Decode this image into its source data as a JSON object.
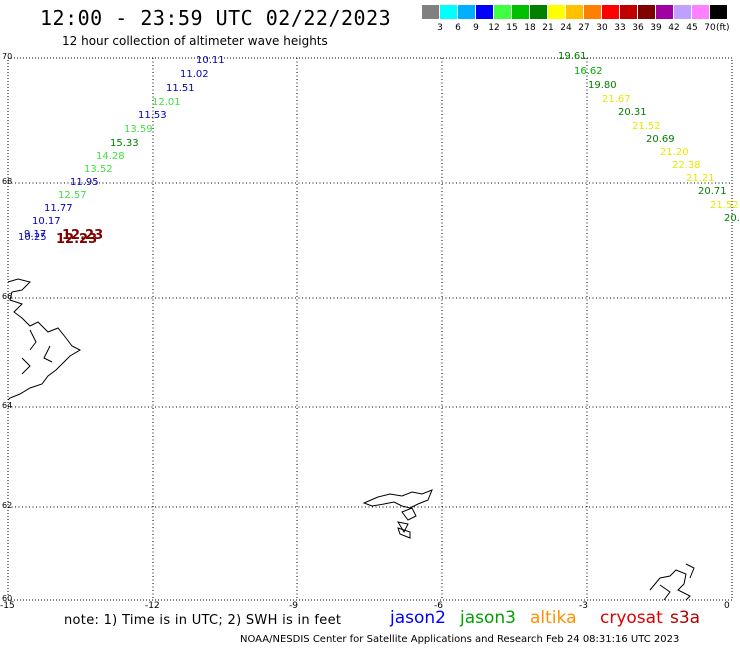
{
  "title": "12:00 - 23:59 UTC 02/22/2023",
  "subtitle": "12 hour collection of altimeter wave heights",
  "legend": {
    "colors": [
      "#808080",
      "#00ffff",
      "#00b0ff",
      "#0000ff",
      "#40ff40",
      "#00c000",
      "#008000",
      "#ffff00",
      "#ffc000",
      "#ff8000",
      "#ff0000",
      "#c00000",
      "#800000",
      "#a000a0",
      "#c0a0ff",
      "#ff80ff",
      "#000000"
    ],
    "labels": [
      "3",
      "6",
      "9",
      "12",
      "15",
      "18",
      "21",
      "24",
      "27",
      "30",
      "33",
      "36",
      "39",
      "42",
      "45",
      "70"
    ],
    "unit": "(ft)"
  },
  "axes": {
    "lat_labels": [
      "70",
      "68",
      "66",
      "64",
      "62",
      "60"
    ],
    "lon_labels": [
      "-15",
      "-12",
      "-9",
      "-6",
      "-3",
      "0"
    ]
  },
  "observations": [
    {
      "text": "10.11",
      "color": "#0000c0"
    },
    {
      "text": "11.02",
      "color": "#0000c0"
    },
    {
      "text": "11.51",
      "color": "#0000c0"
    },
    {
      "text": "12.01",
      "color": "#40e040"
    },
    {
      "text": "11.53",
      "color": "#0000c0"
    },
    {
      "text": "13.59",
      "color": "#40e040"
    },
    {
      "text": "15.33",
      "color": "#008000"
    },
    {
      "text": "14.28",
      "color": "#40e040"
    },
    {
      "text": "13.52",
      "color": "#40e040"
    },
    {
      "text": "11.95",
      "color": "#0000c0"
    },
    {
      "text": "12.57",
      "color": "#40e040"
    },
    {
      "text": "11.77",
      "color": "#0000c0"
    },
    {
      "text": "10.17",
      "color": "#0000c0"
    },
    {
      "text": "9.17",
      "color": "#0000c0"
    },
    {
      "text": "10.25",
      "color": "#0000c0"
    },
    {
      "text": "12.23",
      "color": "#800000"
    },
    {
      "text": "12.23",
      "color": "#800000"
    },
    {
      "text": "19.61",
      "color": "#008000"
    },
    {
      "text": "16.62",
      "color": "#00b000"
    },
    {
      "text": "19.80",
      "color": "#008000"
    },
    {
      "text": "21.67",
      "color": "#e8e800"
    },
    {
      "text": "20.31",
      "color": "#008000"
    },
    {
      "text": "21.52",
      "color": "#e8e800"
    },
    {
      "text": "20.69",
      "color": "#008000"
    },
    {
      "text": "21.20",
      "color": "#e8e800"
    },
    {
      "text": "22.38",
      "color": "#e8e800"
    },
    {
      "text": "21.21",
      "color": "#e8e800"
    },
    {
      "text": "20.71",
      "color": "#008000"
    },
    {
      "text": "21.52",
      "color": "#e8e800"
    },
    {
      "text": "20.",
      "color": "#008000"
    }
  ],
  "note": "note: 1) Time is in UTC; 2) SWH is in feet",
  "satellites": [
    {
      "name": "jason2",
      "color": "#0000ff"
    },
    {
      "name": "jason3",
      "color": "#00a000"
    },
    {
      "name": "altika",
      "color": "#ff9000"
    },
    {
      "name": "cryosat",
      "color": "#e00000"
    },
    {
      "name": "s3a",
      "color": "#b00000"
    }
  ],
  "credit": "NOAA/NESDIS Center for Satellite Applications and Research   Feb 24 08:31:16 UTC 2023"
}
